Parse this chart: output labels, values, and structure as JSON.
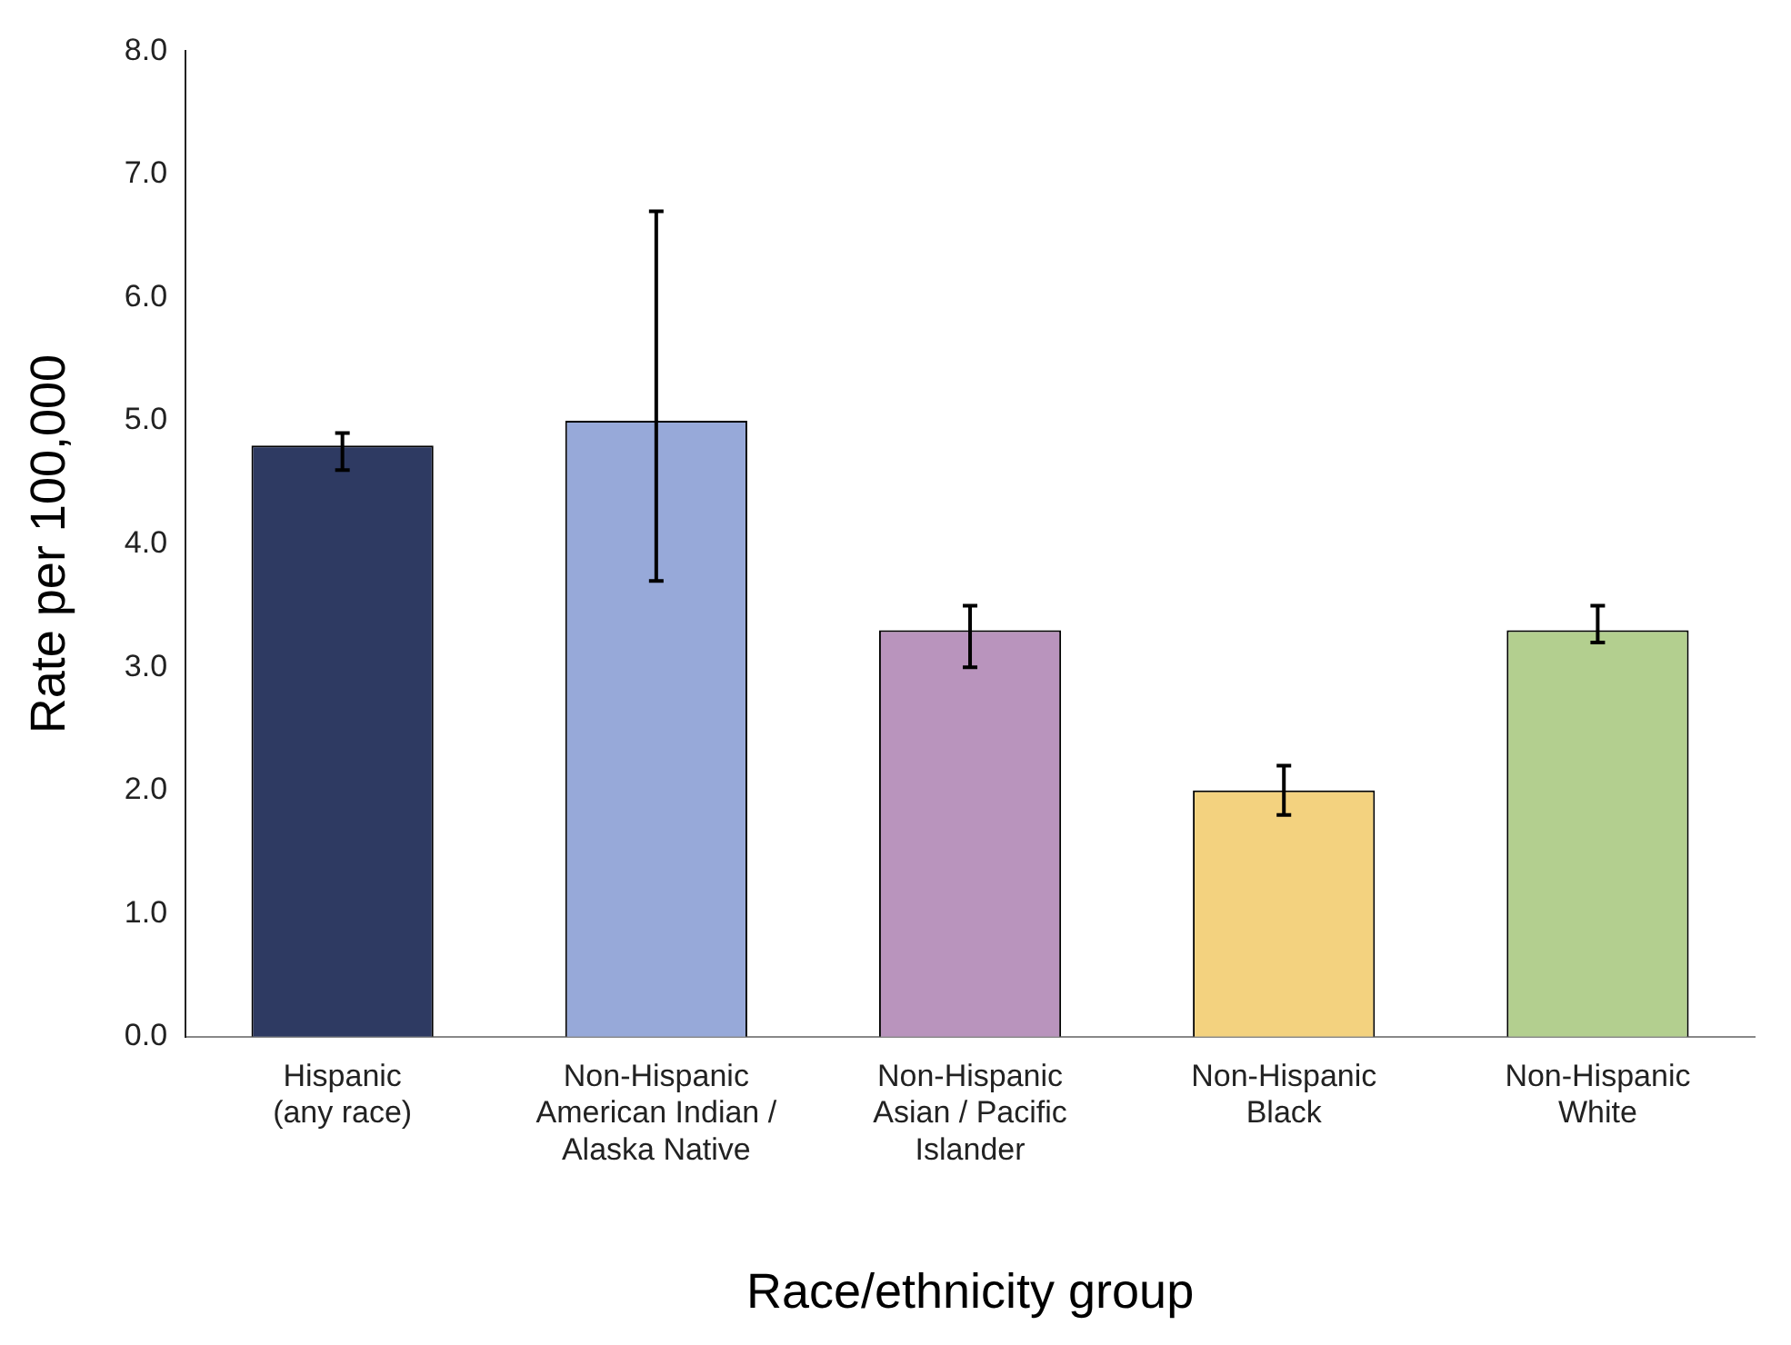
{
  "chart_data": {
    "type": "bar",
    "xlabel": "Race/ethnicity group",
    "ylabel": "Rate per 100,000",
    "categories": [
      "Hispanic\n(any race)",
      "Non-Hispanic\nAmerican Indian /\nAlaska Native",
      "Non-Hispanic\nAsian / Pacific\nIslander",
      "Non-Hispanic\nBlack",
      "Non-Hispanic\nWhite"
    ],
    "values": [
      4.8,
      5.0,
      3.3,
      2.0,
      3.3
    ],
    "colors": [
      "#2e3a62",
      "#97a9d9",
      "#b994bd",
      "#f3d27f",
      "#b3cf8f"
    ],
    "errors": [
      [
        4.6,
        4.9
      ],
      [
        3.7,
        6.7
      ],
      [
        3.0,
        3.5
      ],
      [
        1.8,
        2.2
      ],
      [
        3.2,
        3.5
      ]
    ],
    "ylim": [
      0,
      8
    ],
    "yticks": [
      {
        "value": 0,
        "label": "0.0"
      },
      {
        "value": 1,
        "label": "1.0"
      },
      {
        "value": 2,
        "label": "2.0"
      },
      {
        "value": 3,
        "label": "3.0"
      },
      {
        "value": 4,
        "label": "4.0"
      },
      {
        "value": 5,
        "label": "5.0"
      },
      {
        "value": 6,
        "label": "6.0"
      },
      {
        "value": 7,
        "label": "7.0"
      },
      {
        "value": 8,
        "label": "8.0"
      }
    ],
    "grid": false,
    "legend": false
  }
}
